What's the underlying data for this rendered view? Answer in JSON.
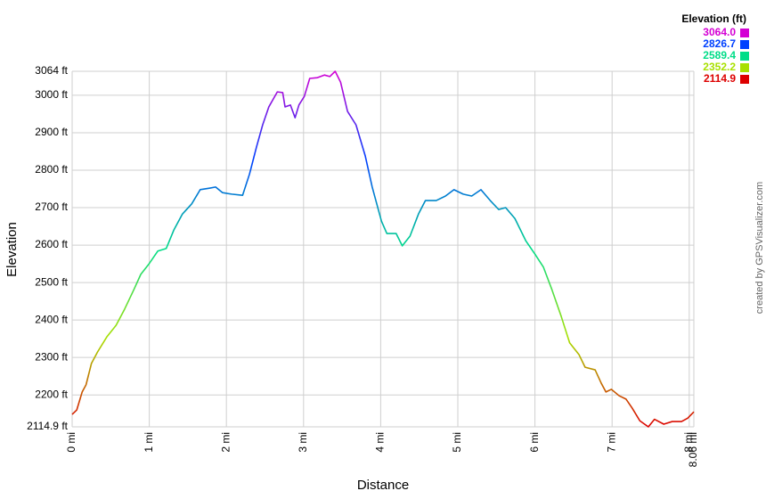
{
  "chart_data": {
    "type": "line",
    "x_label": "Distance",
    "y_label": "Elevation",
    "legend_title": "Elevation (ft)",
    "credit": "created by GPSVisualizer.com",
    "x": [
      0,
      0.06,
      0.13,
      0.18,
      0.25,
      0.33,
      0.45,
      0.57,
      0.68,
      0.8,
      0.89,
      0.99,
      1.11,
      1.22,
      1.32,
      1.43,
      1.55,
      1.66,
      1.78,
      1.86,
      1.95,
      2.07,
      2.21,
      2.3,
      2.39,
      2.47,
      2.55,
      2.66,
      2.73,
      2.76,
      2.83,
      2.89,
      2.94,
      3.01,
      3.08,
      3.18,
      3.27,
      3.34,
      3.41,
      3.48,
      3.57,
      3.68,
      3.8,
      3.89,
      4.01,
      4.08,
      4.2,
      4.28,
      4.38,
      4.49,
      4.58,
      4.72,
      4.84,
      4.95,
      5.07,
      5.18,
      5.3,
      5.42,
      5.53,
      5.62,
      5.74,
      5.88,
      6.0,
      6.11,
      6.22,
      6.34,
      6.45,
      6.57,
      6.65,
      6.78,
      6.86,
      6.92,
      6.99,
      7.09,
      7.18,
      7.26,
      7.36,
      7.47,
      7.55,
      7.67,
      7.78,
      7.9,
      7.98,
      8.06
    ],
    "values": [
      2148,
      2160,
      2208,
      2227,
      2284,
      2315,
      2355,
      2386,
      2429,
      2481,
      2522,
      2548,
      2584,
      2591,
      2641,
      2683,
      2710,
      2748,
      2752,
      2755,
      2740,
      2736,
      2733,
      2790,
      2862,
      2921,
      2969,
      3009,
      3007,
      2969,
      2974,
      2940,
      2974,
      2997,
      3045,
      3047,
      3054,
      3050,
      3064,
      3035,
      2957,
      2921,
      2838,
      2755,
      2664,
      2631,
      2631,
      2598,
      2624,
      2683,
      2719,
      2719,
      2731,
      2748,
      2736,
      2731,
      2748,
      2719,
      2695,
      2700,
      2671,
      2612,
      2576,
      2541,
      2481,
      2410,
      2339,
      2308,
      2274,
      2267,
      2231,
      2208,
      2215,
      2198,
      2189,
      2165,
      2131,
      2114.9,
      2135,
      2122,
      2129,
      2129,
      2138,
      2155
    ],
    "xlim": [
      0,
      8.06
    ],
    "ylim": [
      2114.9,
      3064
    ],
    "xticks": [
      {
        "value": 0,
        "label": "0 mi"
      },
      {
        "value": 1,
        "label": "1 mi"
      },
      {
        "value": 2,
        "label": "2 mi"
      },
      {
        "value": 3,
        "label": "3 mi"
      },
      {
        "value": 4,
        "label": "4 mi"
      },
      {
        "value": 5,
        "label": "5 mi"
      },
      {
        "value": 6,
        "label": "6 mi"
      },
      {
        "value": 7,
        "label": "7 mi"
      },
      {
        "value": 8,
        "label": "8 mi"
      },
      {
        "value": 8.06,
        "label": "8.06 mi"
      }
    ],
    "yticks": [
      {
        "value": 2114.9,
        "label": "2114.9 ft"
      },
      {
        "value": 2200,
        "label": "2200 ft"
      },
      {
        "value": 2300,
        "label": "2300 ft"
      },
      {
        "value": 2400,
        "label": "2400 ft"
      },
      {
        "value": 2500,
        "label": "2500 ft"
      },
      {
        "value": 2600,
        "label": "2600 ft"
      },
      {
        "value": 2700,
        "label": "2700 ft"
      },
      {
        "value": 2800,
        "label": "2800 ft"
      },
      {
        "value": 2900,
        "label": "2900 ft"
      },
      {
        "value": 3000,
        "label": "3000 ft"
      },
      {
        "value": 3064,
        "label": "3064 ft"
      }
    ],
    "grid": true,
    "color_scale": [
      {
        "value": 3064.0,
        "label": "3064.0",
        "color": "#d400d4"
      },
      {
        "value": 2826.7,
        "label": "2826.7",
        "color": "#0040ff"
      },
      {
        "value": 2589.4,
        "label": "2589.4",
        "color": "#00dd88"
      },
      {
        "value": 2352.2,
        "label": "2352.2",
        "color": "#a8e000"
      },
      {
        "value": 2114.9,
        "label": "2114.9",
        "color": "#dd0000"
      }
    ]
  }
}
